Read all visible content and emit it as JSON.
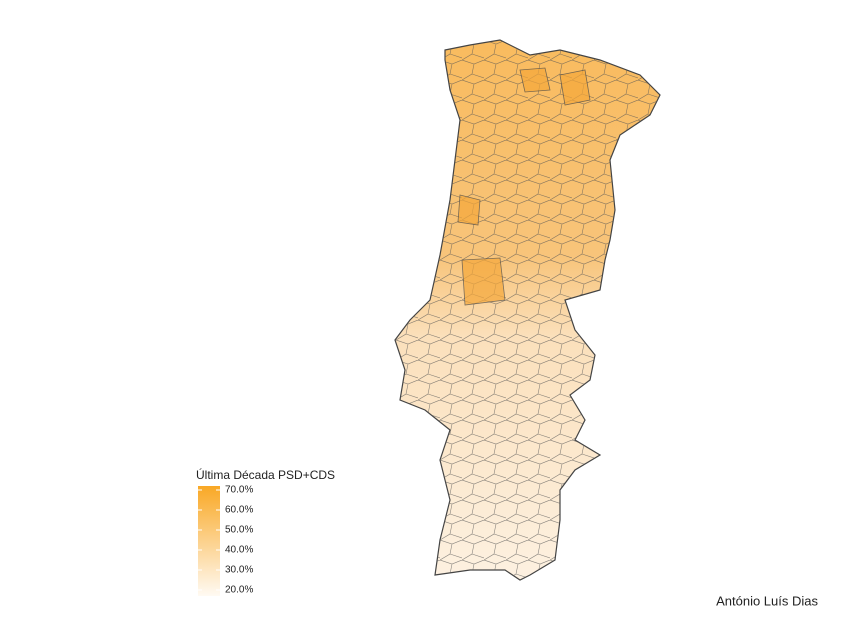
{
  "chart_data": {
    "type": "choropleth",
    "legend_title": "Última Década PSD+CDS",
    "colorlim": [
      17,
      72
    ],
    "colors": [
      "#fffaf3",
      "#f9a825"
    ],
    "legend_ticks": [
      {
        "value": 70,
        "label": "70.0%"
      },
      {
        "value": 60,
        "label": "60.0%"
      },
      {
        "value": 50,
        "label": "50.0%"
      },
      {
        "value": 40,
        "label": "40.0%"
      },
      {
        "value": 30,
        "label": "30.0%"
      },
      {
        "value": 20,
        "label": "20.0%"
      }
    ],
    "caption": "António Luís Dias"
  }
}
